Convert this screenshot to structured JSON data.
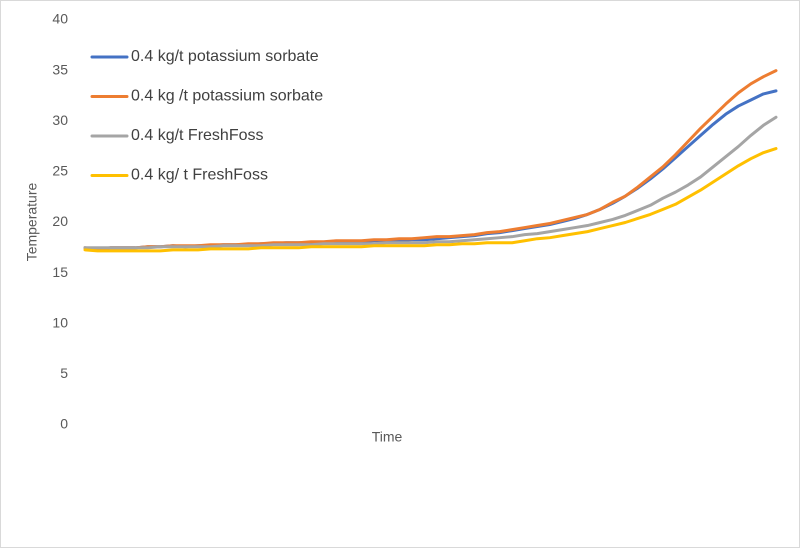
{
  "chart_data": {
    "type": "line",
    "x_label": "Time",
    "y_label": "Temperature",
    "categories": [
      null,
      null,
      null,
      null,
      null,
      null,
      null,
      null,
      null,
      null,
      null,
      null,
      null,
      null,
      null,
      null,
      null,
      null,
      null,
      null,
      null,
      null,
      null,
      null,
      null,
      null,
      null,
      null,
      null,
      null,
      null,
      null,
      null,
      null,
      null,
      null,
      null,
      null,
      null,
      null,
      null,
      null,
      null,
      null,
      null,
      null,
      null,
      null,
      null,
      null,
      null,
      null,
      null,
      null,
      null,
      null
    ],
    "series": [
      {
        "name": "0.4 kg/t potassium sorbate",
        "color": "#4472c4",
        "values": [
          17.5,
          17.4,
          17.5,
          17.5,
          17.5,
          17.6,
          17.6,
          17.7,
          17.6,
          17.7,
          17.7,
          17.8,
          17.8,
          17.8,
          17.9,
          17.9,
          18.0,
          18.0,
          18.0,
          18.0,
          18.1,
          18.1,
          18.1,
          18.2,
          18.2,
          18.2,
          18.3,
          18.3,
          18.4,
          18.5,
          18.6,
          18.7,
          18.9,
          19.0,
          19.2,
          19.4,
          19.6,
          19.8,
          20.1,
          20.4,
          20.8,
          21.3,
          21.9,
          22.6,
          23.4,
          24.3,
          25.3,
          26.4,
          27.5,
          28.6,
          29.7,
          30.7,
          31.5,
          32.1,
          32.7,
          33.0
        ]
      },
      {
        "name": "0.4 kg /t potassium sorbate",
        "color": "#ed7d31",
        "values": [
          17.5,
          17.4,
          17.5,
          17.5,
          17.5,
          17.6,
          17.6,
          17.7,
          17.7,
          17.7,
          17.8,
          17.8,
          17.8,
          17.9,
          17.9,
          18.0,
          18.0,
          18.0,
          18.1,
          18.1,
          18.2,
          18.2,
          18.2,
          18.3,
          18.3,
          18.4,
          18.4,
          18.5,
          18.6,
          18.6,
          18.7,
          18.8,
          19.0,
          19.1,
          19.3,
          19.5,
          19.7,
          19.9,
          20.2,
          20.5,
          20.8,
          21.3,
          22.0,
          22.6,
          23.5,
          24.5,
          25.5,
          26.7,
          28.0,
          29.3,
          30.5,
          31.7,
          32.8,
          33.7,
          34.4,
          35.0
        ]
      },
      {
        "name": "0.4 kg/t FreshFoss",
        "color": "#a5a5a5",
        "values": [
          17.5,
          17.5,
          17.5,
          17.5,
          17.5,
          17.5,
          17.6,
          17.6,
          17.6,
          17.6,
          17.6,
          17.7,
          17.7,
          17.7,
          17.7,
          17.8,
          17.8,
          17.8,
          17.8,
          17.9,
          17.9,
          17.9,
          17.9,
          17.9,
          18.0,
          18.0,
          18.0,
          18.0,
          18.1,
          18.1,
          18.2,
          18.3,
          18.4,
          18.5,
          18.6,
          18.8,
          18.9,
          19.1,
          19.3,
          19.5,
          19.7,
          20.0,
          20.3,
          20.7,
          21.2,
          21.7,
          22.4,
          23.0,
          23.7,
          24.5,
          25.5,
          26.5,
          27.5,
          28.6,
          29.6,
          30.4
        ]
      },
      {
        "name": "0.4 kg/ t FreshFoss",
        "color": "#ffc000",
        "values": [
          17.3,
          17.2,
          17.2,
          17.2,
          17.2,
          17.2,
          17.2,
          17.3,
          17.3,
          17.3,
          17.4,
          17.4,
          17.4,
          17.4,
          17.5,
          17.5,
          17.5,
          17.5,
          17.6,
          17.6,
          17.6,
          17.6,
          17.6,
          17.7,
          17.7,
          17.7,
          17.7,
          17.7,
          17.8,
          17.8,
          17.9,
          17.9,
          18.0,
          18.0,
          18.0,
          18.2,
          18.4,
          18.5,
          18.7,
          18.9,
          19.1,
          19.4,
          19.7,
          20.0,
          20.4,
          20.8,
          21.3,
          21.8,
          22.5,
          23.2,
          24.0,
          24.8,
          25.6,
          26.3,
          26.9,
          27.3
        ]
      }
    ],
    "ylim": [
      0,
      40
    ],
    "yticks": [
      0,
      5,
      10,
      15,
      20,
      25,
      30,
      35,
      40
    ],
    "grid": false,
    "legend": "top-left"
  }
}
